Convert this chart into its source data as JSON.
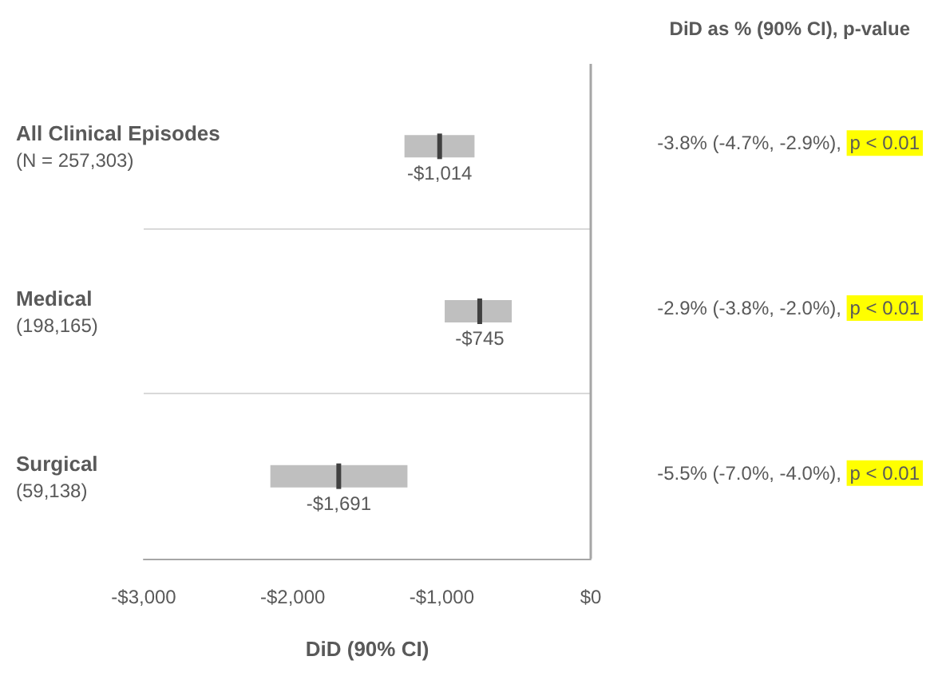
{
  "chart_data": {
    "type": "box",
    "orientation": "horizontal",
    "xlabel": "DiD (90% CI)",
    "categories": [
      "All Clinical Episodes\n(N = 257,303)",
      "Medical\n(198,165)",
      "Surgical\n(59,138)"
    ],
    "series": [
      {
        "color": "#bfbfbf",
        "boxes": [
          {
            "low": -1250,
            "q1": -1250,
            "median": -1014,
            "q3": -780,
            "high": -780
          },
          {
            "low": -980,
            "q1": -980,
            "median": -745,
            "q3": -530,
            "high": -530
          },
          {
            "low": -2150,
            "q1": -2150,
            "median": -1691,
            "q3": -1230,
            "high": -1230
          }
        ]
      }
    ],
    "xlim": [
      -3000,
      0
    ],
    "xticks": [
      {
        "value": -3000,
        "label": "-$3,000"
      },
      {
        "value": -2000,
        "label": "-$2,000"
      },
      {
        "value": -1000,
        "label": "-$1,000"
      },
      {
        "value": 0,
        "label": "$0"
      }
    ],
    "ref_lines": [
      {
        "axis": "x",
        "value": 0,
        "color": "#a6a6a6"
      }
    ],
    "grid": "y",
    "annotations": [
      "DiD as % (90% CI), p-value",
      "-3.8% (-4.7%, -2.9%), p < 0.01",
      "-2.9% (-3.8%, -2.0%), p < 0.01",
      "-5.5% (-7.0%, -4.0%), p < 0.01",
      {
        "text": "-$1,014",
        "x": -1014,
        "y": "All Clinical Episodes\n(N = 257,303)"
      },
      {
        "text": "-$745",
        "x": -745,
        "y": "Medical\n(198,165)"
      },
      {
        "text": "-$1,691",
        "x": -1691,
        "y": "Surgical\n(59,138)"
      }
    ]
  }
}
